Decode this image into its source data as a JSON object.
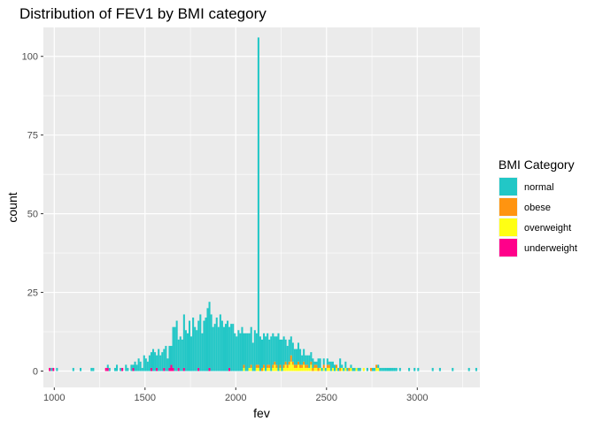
{
  "chart_data": {
    "type": "bar",
    "subtype": "stacked-histogram",
    "title": "Distribution of FEV1 by BMI category",
    "xlabel": "fev",
    "ylabel": "count",
    "xlim": [
      940,
      3345
    ],
    "ylim": [
      -5.2,
      109.2
    ],
    "x_ticks": [
      1000,
      1500,
      2000,
      2500,
      3000
    ],
    "y_ticks": [
      0,
      25,
      50,
      75,
      100
    ],
    "x_tick_labels": [
      "1000",
      "1500",
      "2000",
      "2500",
      "3000"
    ],
    "y_tick_labels": [
      "0",
      "25",
      "50",
      "75",
      "100"
    ],
    "grid": true,
    "legend": {
      "title": "BMI Category",
      "placement": "right",
      "entries": [
        "normal",
        "obese",
        "overweight",
        "underweight"
      ]
    },
    "colors": {
      "normal": "#22C7C6",
      "obese": "#FF9410",
      "overweight": "#FFFF14",
      "underweight": "#FF008A",
      "panel": "#EBEBEB",
      "grid": "#FFFFFF"
    },
    "bin_width": 10,
    "bin_starts": [
      970,
      980,
      990,
      1010,
      1100,
      1140,
      1200,
      1210,
      1280,
      1290,
      1300,
      1330,
      1340,
      1360,
      1370,
      1390,
      1400,
      1420,
      1430,
      1440,
      1450,
      1460,
      1470,
      1480,
      1490,
      1500,
      1510,
      1520,
      1530,
      1540,
      1550,
      1560,
      1570,
      1580,
      1590,
      1600,
      1610,
      1620,
      1630,
      1640,
      1650,
      1660,
      1670,
      1680,
      1690,
      1700,
      1710,
      1720,
      1730,
      1740,
      1750,
      1760,
      1770,
      1780,
      1790,
      1800,
      1810,
      1820,
      1830,
      1840,
      1850,
      1860,
      1870,
      1880,
      1890,
      1900,
      1910,
      1920,
      1930,
      1940,
      1950,
      1960,
      1970,
      1980,
      1990,
      2000,
      2010,
      2020,
      2030,
      2040,
      2050,
      2060,
      2070,
      2080,
      2090,
      2100,
      2110,
      2120,
      2130,
      2140,
      2150,
      2160,
      2170,
      2180,
      2190,
      2200,
      2210,
      2220,
      2230,
      2240,
      2250,
      2260,
      2270,
      2280,
      2290,
      2300,
      2310,
      2320,
      2330,
      2340,
      2350,
      2360,
      2370,
      2380,
      2390,
      2400,
      2410,
      2420,
      2430,
      2440,
      2450,
      2460,
      2470,
      2480,
      2490,
      2500,
      2510,
      2520,
      2530,
      2540,
      2550,
      2560,
      2570,
      2580,
      2590,
      2600,
      2610,
      2620,
      2630,
      2640,
      2650,
      2660,
      2670,
      2680,
      2690,
      2700,
      2710,
      2720,
      2730,
      2740,
      2750,
      2760,
      2770,
      2780,
      2790,
      2800,
      2810,
      2820,
      2830,
      2840,
      2850,
      2860,
      2870,
      2880,
      2890,
      2900,
      2920,
      2950,
      2980,
      3000,
      3080,
      3120,
      3190,
      3280,
      3320
    ],
    "series": [
      {
        "name": "underweight",
        "values": [
          1,
          0,
          1,
          0,
          0,
          0,
          0,
          0,
          1,
          1,
          0,
          0,
          0,
          0,
          1,
          0,
          0,
          0,
          1,
          0,
          0,
          0,
          0,
          0,
          0,
          0,
          0,
          0,
          1,
          0,
          0,
          1,
          0,
          0,
          0,
          1,
          0,
          0,
          1,
          2,
          1,
          0,
          0,
          1,
          0,
          0,
          1,
          0,
          0,
          0,
          0,
          0,
          0,
          0,
          1,
          0,
          0,
          0,
          0,
          0,
          1,
          0,
          0,
          0,
          0,
          0,
          0,
          0,
          0,
          0,
          0,
          1,
          0,
          0,
          0,
          0,
          0,
          0,
          0,
          0,
          0,
          0,
          0,
          0,
          0,
          0,
          0,
          0,
          0,
          0,
          0,
          0,
          0,
          0,
          0,
          0,
          0,
          0,
          0,
          0,
          0,
          0,
          0,
          0,
          0,
          0,
          0,
          0,
          0,
          0,
          0,
          0,
          0,
          0,
          0,
          0,
          0,
          0,
          0,
          0,
          0,
          0,
          0,
          0,
          0,
          0,
          0,
          0,
          0,
          0,
          0,
          0,
          0,
          0,
          0,
          0,
          0,
          0,
          0,
          0,
          0,
          0,
          0,
          0,
          0,
          0,
          0,
          0,
          0,
          0,
          0,
          0,
          0,
          0,
          0,
          0,
          0,
          0,
          0,
          0,
          0,
          0,
          0,
          0,
          0,
          0,
          0,
          0,
          0,
          0,
          0,
          0,
          0,
          0,
          0,
          0
        ]
      },
      {
        "name": "overweight",
        "values": [
          0,
          0,
          0,
          0,
          0,
          0,
          0,
          0,
          0,
          0,
          0,
          0,
          0,
          0,
          0,
          0,
          0,
          0,
          0,
          0,
          0,
          0,
          0,
          0,
          0,
          0,
          0,
          0,
          0,
          0,
          0,
          0,
          0,
          0,
          0,
          0,
          0,
          0,
          0,
          0,
          0,
          0,
          0,
          0,
          0,
          0,
          0,
          0,
          0,
          0,
          0,
          0,
          0,
          0,
          0,
          0,
          0,
          0,
          0,
          0,
          0,
          0,
          0,
          0,
          0,
          0,
          0,
          0,
          0,
          0,
          0,
          0,
          0,
          0,
          0,
          0,
          0,
          0,
          0,
          1,
          0,
          0,
          1,
          1,
          0,
          0,
          1,
          1,
          0,
          0,
          1,
          0,
          1,
          1,
          0,
          1,
          2,
          1,
          0,
          1,
          0,
          1,
          2,
          1,
          2,
          3,
          2,
          1,
          1,
          2,
          1,
          1,
          2,
          1,
          1,
          1,
          2,
          0,
          1,
          1,
          0,
          1,
          0,
          1,
          0,
          1,
          1,
          0,
          1,
          0,
          1,
          0,
          0,
          1,
          0,
          1,
          0,
          0,
          1,
          0,
          0,
          1,
          0,
          0,
          0,
          1,
          0,
          0,
          0,
          0,
          0,
          0,
          1,
          1,
          0,
          0,
          0,
          0,
          0,
          0,
          0,
          0,
          0,
          0,
          0,
          0,
          0,
          0,
          0,
          0,
          0,
          0,
          0,
          0,
          0,
          0
        ]
      },
      {
        "name": "obese",
        "values": [
          0,
          0,
          0,
          0,
          0,
          0,
          0,
          0,
          0,
          0,
          0,
          0,
          0,
          0,
          0,
          0,
          0,
          0,
          0,
          0,
          0,
          0,
          0,
          0,
          0,
          0,
          0,
          0,
          0,
          0,
          0,
          0,
          0,
          0,
          0,
          0,
          0,
          0,
          0,
          0,
          0,
          0,
          0,
          0,
          0,
          0,
          0,
          0,
          0,
          0,
          0,
          0,
          0,
          0,
          0,
          0,
          0,
          0,
          0,
          0,
          0,
          0,
          0,
          0,
          0,
          0,
          0,
          0,
          0,
          0,
          0,
          0,
          0,
          0,
          0,
          0,
          0,
          0,
          0,
          1,
          0,
          0,
          0,
          1,
          0,
          0,
          1,
          1,
          0,
          1,
          1,
          0,
          1,
          1,
          0,
          1,
          1,
          1,
          0,
          1,
          0,
          1,
          1,
          1,
          1,
          2,
          1,
          1,
          1,
          1,
          1,
          1,
          1,
          1,
          1,
          0,
          1,
          1,
          1,
          1,
          1,
          0,
          0,
          1,
          0,
          1,
          1,
          0,
          0,
          0,
          1,
          0,
          1,
          0,
          0,
          0,
          0,
          1,
          0,
          0,
          0,
          0,
          0,
          0,
          0,
          0,
          0,
          0,
          0,
          1,
          0,
          0,
          1,
          0,
          0,
          0,
          0,
          0,
          0,
          0,
          0,
          0,
          0,
          0,
          0,
          0,
          0,
          0,
          0,
          0,
          0,
          0,
          0,
          0,
          0,
          1
        ]
      },
      {
        "name": "normal",
        "values": [
          0,
          1,
          0,
          1,
          1,
          1,
          1,
          1,
          0,
          1,
          1,
          1,
          2,
          1,
          0,
          2,
          1,
          2,
          1,
          3,
          2,
          4,
          3,
          1,
          5,
          4,
          3,
          5,
          5,
          7,
          6,
          4,
          7,
          5,
          6,
          6,
          8,
          4,
          7,
          6,
          13,
          14,
          16,
          9,
          11,
          10,
          17,
          13,
          12,
          16,
          11,
          17,
          14,
          13,
          15,
          18,
          12,
          16,
          17,
          20,
          21,
          18,
          14,
          15,
          17,
          14,
          18,
          16,
          14,
          15,
          16,
          13,
          15,
          15,
          12,
          11,
          13,
          12,
          14,
          10,
          12,
          12,
          11,
          12,
          9,
          13,
          10,
          104,
          11,
          9,
          10,
          11,
          10,
          8,
          11,
          10,
          8,
          9,
          12,
          8,
          10,
          9,
          7,
          6,
          7,
          6,
          6,
          5,
          5,
          6,
          5,
          3,
          4,
          3,
          3,
          4,
          3,
          3,
          1,
          1,
          3,
          3,
          1,
          2,
          1,
          2,
          1,
          3,
          2,
          2,
          0,
          1,
          3,
          1,
          1,
          2,
          1,
          0,
          1,
          1,
          1,
          0,
          1,
          1,
          0,
          0,
          0,
          1,
          0,
          0,
          1,
          1,
          0,
          1,
          1,
          1,
          1,
          1,
          1,
          1,
          1,
          1,
          1,
          1,
          0,
          1,
          0,
          1,
          1,
          1,
          1,
          1,
          1,
          1,
          1,
          0
        ]
      }
    ]
  }
}
